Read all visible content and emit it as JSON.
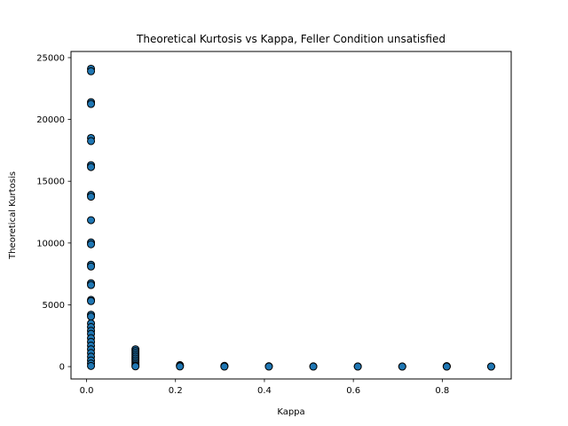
{
  "chart_data": {
    "type": "scatter",
    "title": "Theoretical Kurtosis vs Kappa, Feller Condition unsatisfied",
    "xlabel": "Kappa",
    "ylabel": "Theoretical Kurtosis",
    "xlim": [
      -0.035,
      0.955
    ],
    "ylim": [
      -1000,
      25500
    ],
    "xticks": [
      0.0,
      0.2,
      0.4,
      0.6,
      0.8
    ],
    "xtick_labels": [
      "0.0",
      "0.2",
      "0.4",
      "0.6",
      "0.8"
    ],
    "yticks": [
      0,
      5000,
      10000,
      15000,
      20000,
      25000
    ],
    "ytick_labels": [
      "0",
      "5000",
      "10000",
      "15000",
      "20000",
      "25000"
    ],
    "grid": false,
    "legend": "none",
    "marker_fill": "#1f77b4",
    "marker_edge": "#000000",
    "series": [
      {
        "points": [
          [
            0.01,
            24100
          ],
          [
            0.01,
            23900
          ],
          [
            0.01,
            21400
          ],
          [
            0.01,
            21250
          ],
          [
            0.01,
            18500
          ],
          [
            0.01,
            18250
          ],
          [
            0.01,
            16300
          ],
          [
            0.01,
            16150
          ],
          [
            0.01,
            13900
          ],
          [
            0.01,
            13750
          ],
          [
            0.01,
            11850
          ],
          [
            0.01,
            10050
          ],
          [
            0.01,
            9900
          ],
          [
            0.01,
            8250
          ],
          [
            0.01,
            8100
          ],
          [
            0.01,
            6750
          ],
          [
            0.01,
            6600
          ],
          [
            0.01,
            5400
          ],
          [
            0.01,
            5300
          ],
          [
            0.01,
            4200
          ],
          [
            0.01,
            4050
          ],
          [
            0.01,
            3500
          ],
          [
            0.01,
            3200
          ],
          [
            0.01,
            2900
          ],
          [
            0.01,
            2650
          ],
          [
            0.01,
            2300
          ],
          [
            0.01,
            2000
          ],
          [
            0.01,
            1700
          ],
          [
            0.01,
            1400
          ],
          [
            0.01,
            1100
          ],
          [
            0.01,
            800
          ],
          [
            0.01,
            500
          ],
          [
            0.01,
            250
          ],
          [
            0.01,
            50
          ],
          [
            0.11,
            1400
          ],
          [
            0.11,
            1250
          ],
          [
            0.11,
            1100
          ],
          [
            0.11,
            950
          ],
          [
            0.11,
            800
          ],
          [
            0.11,
            650
          ],
          [
            0.11,
            500
          ],
          [
            0.11,
            350
          ],
          [
            0.11,
            200
          ],
          [
            0.11,
            80
          ],
          [
            0.11,
            20
          ],
          [
            0.21,
            120
          ],
          [
            0.21,
            60
          ],
          [
            0.21,
            10
          ],
          [
            0.31,
            60
          ],
          [
            0.31,
            30
          ],
          [
            0.31,
            5
          ],
          [
            0.41,
            30
          ],
          [
            0.41,
            5
          ],
          [
            0.51,
            20
          ],
          [
            0.51,
            5
          ],
          [
            0.61,
            15
          ],
          [
            0.61,
            3
          ],
          [
            0.71,
            10
          ],
          [
            0.71,
            2
          ],
          [
            0.81,
            40
          ],
          [
            0.81,
            8
          ],
          [
            0.81,
            2
          ],
          [
            0.91,
            8
          ],
          [
            0.91,
            2
          ]
        ]
      }
    ]
  }
}
